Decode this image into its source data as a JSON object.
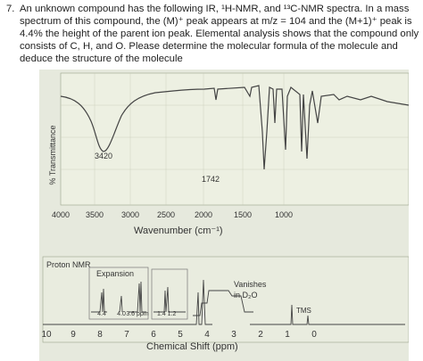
{
  "question": {
    "number": "7.",
    "lines": [
      "An unknown compound has the following IR, ¹H-NMR, and ¹³C-NMR spectra. In a mass",
      "spectrum of this compound, the (M)⁺ peak appears at m/z = 104 and the (M+1)⁺ peak is",
      "4.4% the height of the parent ion peak. Elemental analysis shows that the compound only",
      "consists of C, H, and O. Please determine the molecular formula of the molecule and",
      "deduce the structure of the molecule"
    ]
  },
  "ir": {
    "y_label": "% Transmittance",
    "annotations": [
      "3420",
      "1742"
    ],
    "x_ticks": [
      "4000",
      "3500",
      "3000",
      "2500",
      "2000",
      "1500",
      "1000"
    ],
    "x_label": "Wavenumber (cm⁻¹)"
  },
  "nmr": {
    "title": "Proton NMR",
    "expansion": "Expansion",
    "expansion_ticks": [
      "4.4",
      "4.0",
      "3.6 ppm"
    ],
    "expansion2_ticks": "1.4 1.2",
    "note": [
      "Vanishes",
      "in D₂O"
    ],
    "tms": "TMS",
    "x_ticks": [
      "10",
      "9",
      "8",
      "7",
      "6",
      "5",
      "4",
      "3",
      "2",
      "1",
      "0"
    ],
    "x_label": "Chemical Shift (ppm)"
  }
}
